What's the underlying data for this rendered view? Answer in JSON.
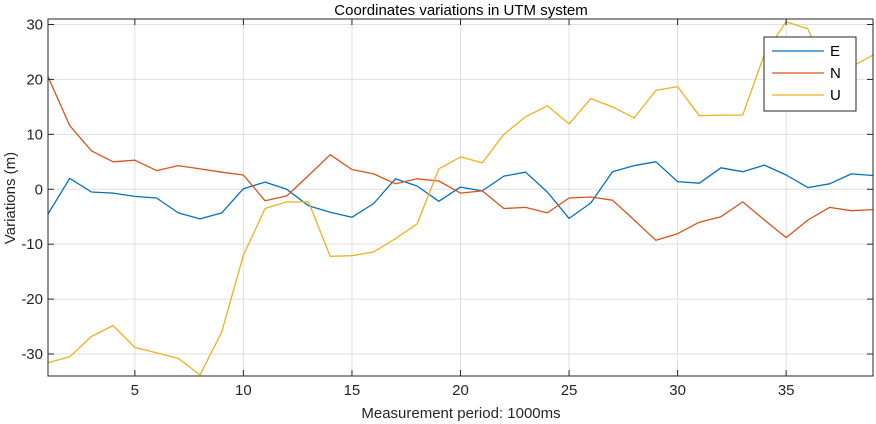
{
  "chart_data": {
    "type": "line",
    "title": "Coordinates variations in UTM system",
    "xlabel": "Measurement period: 1000ms",
    "ylabel": "Variations (m)",
    "xlim": [
      1,
      39
    ],
    "ylim": [
      -34,
      31
    ],
    "xticks": [
      5,
      10,
      15,
      20,
      25,
      30,
      35
    ],
    "yticks": [
      -30,
      -20,
      -10,
      0,
      10,
      20,
      30
    ],
    "grid": true,
    "legend_position": "top-right",
    "x": [
      1,
      2,
      3,
      4,
      5,
      6,
      7,
      8,
      9,
      10,
      11,
      12,
      13,
      14,
      15,
      16,
      17,
      18,
      19,
      20,
      21,
      22,
      23,
      24,
      25,
      26,
      27,
      28,
      29,
      30,
      31,
      32,
      33,
      34,
      35,
      36,
      37,
      38,
      39
    ],
    "series": [
      {
        "name": "E",
        "color": "#0072BD",
        "values": [
          -4.5,
          2,
          -0.5,
          -0.7,
          -1.3,
          -1.6,
          -4.3,
          -5.4,
          -4.3,
          0.1,
          1.3,
          0,
          -3,
          -4.2,
          -5.1,
          -2.6,
          1.9,
          0.6,
          -2.2,
          0.4,
          -0.3,
          2.4,
          3.1,
          -0.5,
          -5.3,
          -2.5,
          3.2,
          4.3,
          5,
          1.4,
          1.1,
          3.9,
          3.2,
          4.4,
          2.6,
          0.3,
          1,
          2.8,
          2.5
        ]
      },
      {
        "name": "N",
        "color": "#D95319",
        "values": [
          20.5,
          11.6,
          7,
          5,
          5.3,
          3.4,
          4.3,
          3.7,
          3.1,
          2.6,
          -2.1,
          -1.2,
          2.5,
          6.3,
          3.6,
          2.8,
          1,
          1.9,
          1.5,
          -0.7,
          -0.3,
          -3.5,
          -3.3,
          -4.3,
          -1.6,
          -1.4,
          -2,
          -5.6,
          -9.3,
          -8.1,
          -6,
          -5,
          -2.3,
          -5.6,
          -8.8,
          -5.6,
          -3.3,
          -3.9,
          -3.7
        ]
      },
      {
        "name": "U",
        "color": "#EDB120",
        "values": [
          -31.6,
          -30.5,
          -26.8,
          -24.8,
          -28.8,
          -29.8,
          -30.8,
          -33.8,
          -26,
          -12,
          -3.5,
          -2.3,
          -2.3,
          -12.2,
          -12.1,
          -11.4,
          -9,
          -6.3,
          3.7,
          5.9,
          4.8,
          10,
          13.2,
          15.2,
          11.9,
          16.5,
          15,
          13,
          18,
          18.7,
          13.4,
          13.5,
          13.5,
          24.6,
          30.5,
          29.2,
          20,
          22.3,
          24.4
        ]
      }
    ]
  }
}
